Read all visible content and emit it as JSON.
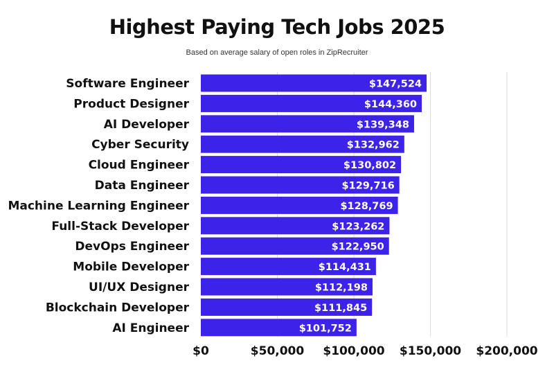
{
  "chart_data": {
    "type": "bar",
    "orientation": "horizontal",
    "title": "Highest Paying Tech Jobs 2025",
    "subtitle": "Based on average salary of open roles in ZipRecruiter",
    "categories": [
      "Software Engineer",
      "Product Designer",
      "AI Developer",
      "Cyber Security",
      "Cloud Engineer",
      "Data Engineer",
      "Machine Learning Engineer",
      "Full-Stack Developer",
      "DevOps Engineer",
      "Mobile Developer",
      "UI/UX Designer",
      "Blockchain Developer",
      "AI Engineer"
    ],
    "values": [
      147524,
      144360,
      139348,
      132962,
      130802,
      129716,
      128769,
      123262,
      122950,
      114431,
      112198,
      111845,
      101752
    ],
    "value_labels": [
      "$147,524",
      "$144,360",
      "$139,348",
      "$132,962",
      "$130,802",
      "$129,716",
      "$128,769",
      "$123,262",
      "$122,950",
      "$114,431",
      "$112,198",
      "$111,845",
      "$101,752"
    ],
    "xlim": [
      0,
      200000
    ],
    "x_ticks": [
      0,
      50000,
      100000,
      150000,
      200000
    ],
    "x_tick_labels": [
      "$0",
      "$50,000",
      "$100,000",
      "$150,000",
      "$200,000"
    ],
    "grid": true,
    "xlabel": "",
    "ylabel": ""
  },
  "colors": {
    "bar": "#3d22e8",
    "bar_text": "#ffffff",
    "text": "#111111",
    "grid": "#dcdcdc"
  }
}
